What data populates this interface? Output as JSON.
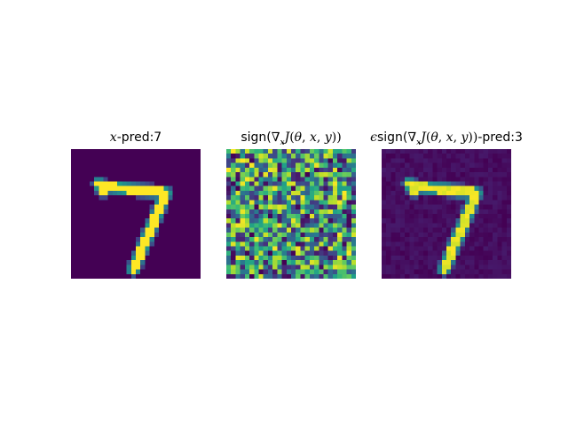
{
  "chart_data": [
    {
      "type": "heatmap",
      "title_parts": [
        {
          "t": "x",
          "s": "mi"
        },
        {
          "t": "-pred:7",
          "s": "tx"
        }
      ],
      "colormap": "viridis",
      "grid_size": 28,
      "image": "mnist_digit_7",
      "predicted_label": "7"
    },
    {
      "type": "heatmap",
      "title_parts": [
        {
          "t": "sign(",
          "s": "tx"
        },
        {
          "t": "∇",
          "s": "mu"
        },
        {
          "t": "x",
          "s": "sub"
        },
        {
          "t": "J",
          "s": "mi"
        },
        {
          "t": "(",
          "s": "mu"
        },
        {
          "t": "θ",
          "s": "mi"
        },
        {
          "t": ", ",
          "s": "mu"
        },
        {
          "t": "x",
          "s": "mi"
        },
        {
          "t": ", ",
          "s": "mu"
        },
        {
          "t": "y",
          "s": "mi"
        },
        {
          "t": "))",
          "s": "mu"
        }
      ],
      "colormap": "viridis",
      "grid_size": 28,
      "image": "gradient_sign_noise"
    },
    {
      "type": "heatmap",
      "title_parts": [
        {
          "t": "ϵ",
          "s": "mi"
        },
        {
          "t": "sign(",
          "s": "tx"
        },
        {
          "t": "∇",
          "s": "mu"
        },
        {
          "t": "x",
          "s": "sub"
        },
        {
          "t": "J",
          "s": "mi"
        },
        {
          "t": "(",
          "s": "mu"
        },
        {
          "t": "θ",
          "s": "mi"
        },
        {
          "t": ", ",
          "s": "mu"
        },
        {
          "t": "x",
          "s": "mi"
        },
        {
          "t": ", ",
          "s": "mu"
        },
        {
          "t": "y",
          "s": "mi"
        },
        {
          "t": "))",
          "s": "mu"
        },
        {
          "t": "-pred:3",
          "s": "tx"
        }
      ],
      "colormap": "viridis",
      "grid_size": 28,
      "image": "adversarial_perturbation",
      "predicted_label": "3"
    }
  ]
}
